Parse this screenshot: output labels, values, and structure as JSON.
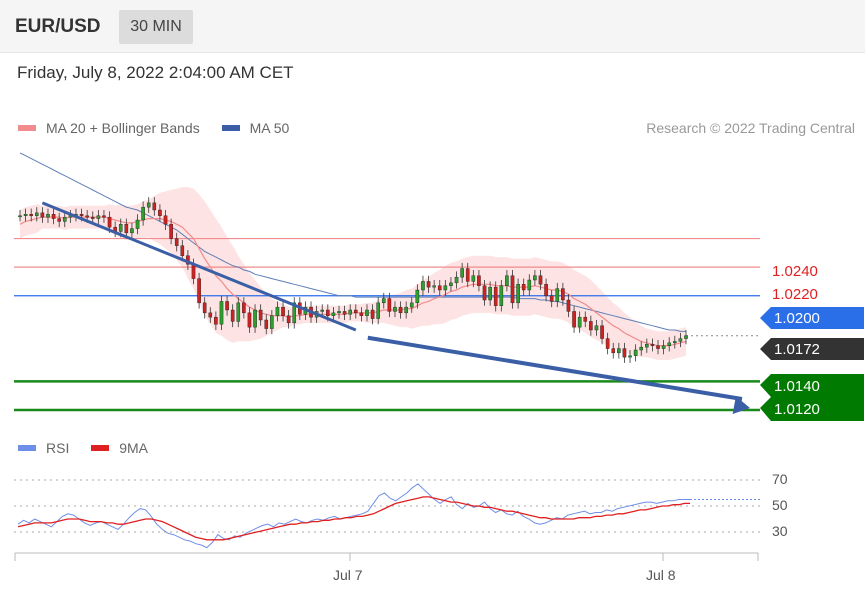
{
  "header": {
    "pair": "EUR/USD",
    "timeframe": "30 MIN"
  },
  "timestamp": "Friday, July 8, 2022 2:04:00 AM CET",
  "legend_main": [
    {
      "label": "MA 20 + Bollinger Bands",
      "color": "#f28b8b"
    },
    {
      "label": "MA 50",
      "color": "#3b5fa6"
    }
  ],
  "credit": "Research © 2022 Trading Central",
  "legend_rsi": [
    {
      "label": "RSI",
      "color": "#6e8ee8"
    },
    {
      "label": "9MA",
      "color": "#e02020"
    }
  ],
  "colors": {
    "up": "#2e9e2e",
    "down": "#cc2222",
    "bands": "#fde3e3",
    "resistance": "#f28b8b",
    "support": "#1a8a1a",
    "pivot": "#2a6ee8",
    "price": "#333333"
  },
  "price_labels": [
    {
      "value": "1.0240",
      "type": "resistance"
    },
    {
      "value": "1.0220",
      "type": "resistance"
    },
    {
      "value": "1.0200",
      "type": "pivot"
    },
    {
      "value": "1.0172",
      "type": "current"
    },
    {
      "value": "1.0140",
      "type": "support"
    },
    {
      "value": "1.0120",
      "type": "support"
    }
  ],
  "rsi_levels": [
    "70",
    "50",
    "30"
  ],
  "x_ticks": [
    "Jul 7",
    "Jul 8"
  ],
  "chart_data": {
    "type": "candlestick",
    "title": "EUR/USD 30 MIN",
    "ylim": [
      1.0113,
      1.0302
    ],
    "levels": [
      1.024,
      1.022,
      1.02,
      1.0172,
      1.014,
      1.012
    ],
    "current_price": 1.0172,
    "trendline": {
      "from": [
        4,
        1.0265
      ],
      "to": [
        60,
        1.0176
      ]
    },
    "projection": {
      "from": [
        60,
        1.0172
      ],
      "to": [
        65,
        1.012
      ]
    },
    "closes": [
      1.0256,
      1.0257,
      1.0256,
      1.0258,
      1.0255,
      1.0257,
      1.0254,
      1.0252,
      1.0255,
      1.0256,
      1.0257,
      1.0256,
      1.0255,
      1.0254,
      1.0256,
      1.0255,
      1.0248,
      1.0245,
      1.025,
      1.0244,
      1.0247,
      1.0253,
      1.0262,
      1.0265,
      1.026,
      1.0256,
      1.025,
      1.024,
      1.0235,
      1.0228,
      1.0222,
      1.0212,
      1.0195,
      1.0188,
      1.0185,
      1.018,
      1.0196,
      1.019,
      1.0182,
      1.0195,
      1.0188,
      1.0178,
      1.019,
      1.0183,
      1.0177,
      1.0186,
      1.0192,
      1.0186,
      1.0181,
      1.0195,
      1.0187,
      1.0192,
      1.0185,
      1.0189,
      1.019,
      1.0186,
      1.0188,
      1.0189,
      1.0187,
      1.019,
      1.0188,
      1.0186,
      1.019,
      1.0184,
      1.0195,
      1.0198,
      1.0189,
      1.0192,
      1.0188,
      1.0192,
      1.0195,
      1.0204,
      1.021,
      1.0206,
      1.0207,
      1.0204,
      1.0207,
      1.0209,
      1.0213,
      1.0219,
      1.021,
      1.0214,
      1.0207,
      1.0197,
      1.0206,
      1.0193,
      1.0207,
      1.0214,
      1.0195,
      1.0208,
      1.0204,
      1.0211,
      1.0214,
      1.0208,
      1.02,
      1.0196,
      1.0205,
      1.0197,
      1.0189,
      1.0178,
      1.0185,
      1.0182,
      1.0176,
      1.0179,
      1.017,
      1.0163,
      1.016,
      1.0163,
      1.0157,
      1.0158,
      1.0162,
      1.0164,
      1.0166,
      1.0165,
      1.0163,
      1.0165,
      1.0167,
      1.0168,
      1.017,
      1.0172
    ],
    "ma20": [
      1.025,
      1.0252,
      1.0253,
      1.0254,
      1.0255,
      1.0255,
      1.0255,
      1.0255,
      1.0254,
      1.0255,
      1.0255,
      1.0255,
      1.0255,
      1.0255,
      1.0255,
      1.0255,
      1.0254,
      1.0253,
      1.0252,
      1.0251,
      1.0251,
      1.0252,
      1.0253,
      1.0254,
      1.0254,
      1.0254,
      1.0253,
      1.0252,
      1.025,
      1.0248,
      1.0244,
      1.024,
      1.0233,
      1.0226,
      1.022,
      1.0214,
      1.021,
      1.0205,
      1.0201,
      1.0198,
      1.0195,
      1.0192,
      1.019,
      1.0188,
      1.0187,
      1.0186,
      1.0186,
      1.0186,
      1.0185,
      1.0186,
      1.0186,
      1.0187,
      1.0187,
      1.0187,
      1.0187,
      1.0187,
      1.0187,
      1.0187,
      1.0187,
      1.0188,
      1.0188,
      1.0188,
      1.0188,
      1.0188,
      1.0189,
      1.019,
      1.019,
      1.019,
      1.019,
      1.0191,
      1.0191,
      1.0193,
      1.0195,
      1.0196,
      1.0198,
      1.0199,
      1.0201,
      1.0203,
      1.0204,
      1.0206,
      1.0207,
      1.0208,
      1.0208,
      1.0208,
      1.0208,
      1.0207,
      1.0207,
      1.0207,
      1.0206,
      1.0206,
      1.0206,
      1.0206,
      1.0207,
      1.0206,
      1.0205,
      1.0204,
      1.0204,
      1.0203,
      1.0201,
      1.0198,
      1.0196,
      1.0194,
      1.0191,
      1.0188,
      1.0185,
      1.0182,
      1.0179,
      1.0177,
      1.0174,
      1.0172,
      1.017,
      1.0168,
      1.0167,
      1.0166,
      1.0165,
      1.0165,
      1.0165,
      1.0166,
      1.0167,
      1.0168
    ],
    "ma50": [
      1.03,
      1.0298,
      1.0296,
      1.0294,
      1.0292,
      1.029,
      1.0288,
      1.0286,
      1.0284,
      1.0282,
      1.028,
      1.0278,
      1.0276,
      1.0274,
      1.0272,
      1.027,
      1.0268,
      1.0266,
      1.0264,
      1.0262,
      1.0261,
      1.026,
      1.0258,
      1.0256,
      1.0254,
      1.0252,
      1.025,
      1.0248,
      1.0246,
      1.0243,
      1.024,
      1.0237,
      1.0234,
      1.0231,
      1.0229,
      1.0227,
      1.0225,
      1.0223,
      1.0221,
      1.022,
      1.0218,
      1.0217,
      1.0215,
      1.0214,
      1.0213,
      1.0212,
      1.0211,
      1.021,
      1.0209,
      1.0208,
      1.0207,
      1.0206,
      1.0205,
      1.0204,
      1.0203,
      1.0202,
      1.0201,
      1.02,
      1.02,
      1.02,
      1.0199,
      1.0199,
      1.0199,
      1.0199,
      1.0199,
      1.0199,
      1.0199,
      1.0199,
      1.0199,
      1.0199,
      1.0199,
      1.0199,
      1.0199,
      1.0199,
      1.0199,
      1.0199,
      1.0199,
      1.0199,
      1.0199,
      1.0199,
      1.0199,
      1.0199,
      1.0199,
      1.0199,
      1.0199,
      1.0199,
      1.0199,
      1.0199,
      1.0199,
      1.0198,
      1.0198,
      1.0198,
      1.0198,
      1.0197,
      1.0197,
      1.0196,
      1.0196,
      1.0195,
      1.0194,
      1.0193,
      1.0192,
      1.0191,
      1.019,
      1.0189,
      1.0188,
      1.0187,
      1.0186,
      1.0185,
      1.0184,
      1.0183,
      1.0182,
      1.0181,
      1.018,
      1.0179,
      1.0178,
      1.0177,
      1.0176,
      1.0176,
      1.0175,
      1.0175
    ],
    "band_width": [
      0.001,
      0.001,
      0.001,
      0.001,
      0.0008,
      0.0008,
      0.0008,
      0.0008,
      0.0008,
      0.0008,
      0.0008,
      0.0008,
      0.0008,
      0.0008,
      0.0008,
      0.0008,
      0.001,
      0.001,
      0.0012,
      0.0012,
      0.0012,
      0.0012,
      0.0013,
      0.0013,
      0.0016,
      0.0018,
      0.002,
      0.0022,
      0.0025,
      0.0028,
      0.0032,
      0.0035,
      0.0038,
      0.004,
      0.004,
      0.004,
      0.0038,
      0.0036,
      0.0034,
      0.003,
      0.0027,
      0.0024,
      0.0021,
      0.0018,
      0.0015,
      0.0012,
      0.001,
      0.0008,
      0.0007,
      0.0006,
      0.0006,
      0.0006,
      0.0006,
      0.0006,
      0.0006,
      0.0006,
      0.0006,
      0.0006,
      0.0006,
      0.0006,
      0.0006,
      0.0006,
      0.0007,
      0.0007,
      0.0008,
      0.0009,
      0.001,
      0.0011,
      0.0012,
      0.0013,
      0.0014,
      0.0015,
      0.0016,
      0.0017,
      0.0018,
      0.0019,
      0.002,
      0.002,
      0.002,
      0.002,
      0.002,
      0.002,
      0.002,
      0.002,
      0.002,
      0.002,
      0.002,
      0.002,
      0.002,
      0.002,
      0.002,
      0.002,
      0.002,
      0.002,
      0.002,
      0.002,
      0.002,
      0.002,
      0.002,
      0.002,
      0.002,
      0.002,
      0.002,
      0.0019,
      0.0018,
      0.0017,
      0.0016,
      0.0015,
      0.0014,
      0.0013,
      0.0012,
      0.0011,
      0.001,
      0.001,
      0.001,
      0.001,
      0.001,
      0.001,
      0.001,
      0.001
    ],
    "rsi": [
      36,
      39,
      37,
      40,
      38,
      36,
      34,
      38,
      42,
      44,
      43,
      40,
      37,
      35,
      37,
      38,
      36,
      34,
      32,
      36,
      41,
      45,
      48,
      47,
      42,
      36,
      32,
      29,
      28,
      26,
      24,
      23,
      21,
      20,
      18,
      22,
      28,
      25,
      24,
      27,
      26,
      29,
      31,
      33,
      35,
      36,
      34,
      37,
      36,
      38,
      40,
      38,
      37,
      39,
      40,
      39,
      41,
      42,
      40,
      41,
      42,
      43,
      44,
      46,
      52,
      58,
      60,
      56,
      54,
      57,
      60,
      64,
      67,
      63,
      59,
      55,
      52,
      55,
      57,
      51,
      48,
      52,
      49,
      50,
      53,
      48,
      45,
      47,
      44,
      43,
      46,
      42,
      40,
      37,
      36,
      37,
      39,
      41,
      40,
      43,
      44,
      45,
      46,
      44,
      45,
      45,
      47,
      46,
      48,
      49,
      50,
      51,
      52,
      53,
      53,
      52,
      53,
      54,
      54,
      55,
      55,
      55
    ],
    "rsi_ma": [
      34,
      35,
      36,
      37,
      37,
      37,
      37,
      38,
      39,
      40,
      40,
      40,
      39,
      38,
      38,
      38,
      37,
      37,
      36,
      36,
      37,
      38,
      39,
      40,
      40,
      39,
      38,
      36,
      34,
      32,
      30,
      28,
      26,
      25,
      24,
      24,
      24,
      24,
      25,
      26,
      27,
      28,
      29,
      30,
      31,
      32,
      33,
      34,
      35,
      36,
      36,
      37,
      37,
      38,
      38,
      39,
      39,
      40,
      40,
      41,
      41,
      42,
      42,
      43,
      44,
      46,
      48,
      50,
      52,
      53,
      54,
      55,
      56,
      57,
      57,
      56,
      55,
      54,
      53,
      53,
      52,
      51,
      50,
      50,
      49,
      49,
      48,
      47,
      46,
      46,
      45,
      44,
      43,
      42,
      41,
      41,
      40,
      40,
      40,
      40,
      40,
      41,
      41,
      41,
      42,
      42,
      43,
      43,
      44,
      44,
      45,
      46,
      47,
      47,
      48,
      49,
      50,
      50,
      51,
      51,
      52,
      52
    ],
    "xlabel": "",
    "ylabel": ""
  }
}
